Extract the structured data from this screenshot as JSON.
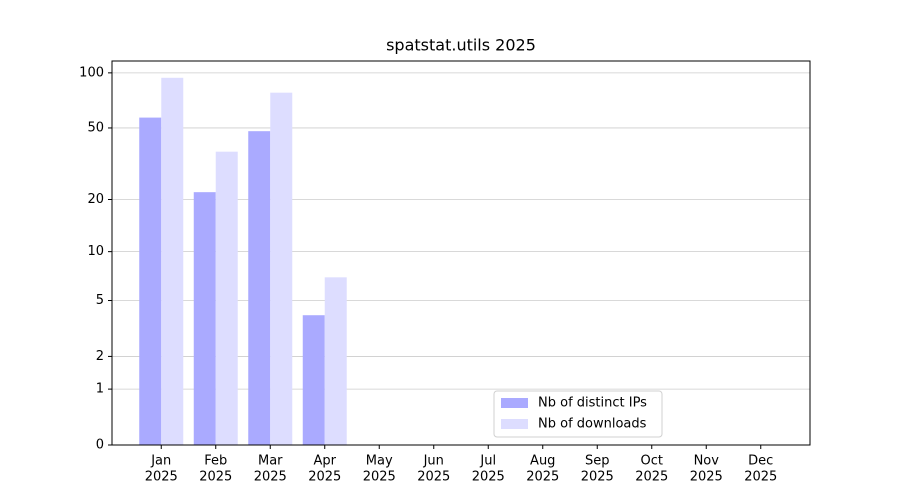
{
  "chart_data": {
    "type": "bar",
    "title": "spatstat.utils 2025",
    "categories": [
      [
        "Jan",
        "2025"
      ],
      [
        "Feb",
        "2025"
      ],
      [
        "Mar",
        "2025"
      ],
      [
        "Apr",
        "2025"
      ],
      [
        "May",
        "2025"
      ],
      [
        "Jun",
        "2025"
      ],
      [
        "Jul",
        "2025"
      ],
      [
        "Aug",
        "2025"
      ],
      [
        "Sep",
        "2025"
      ],
      [
        "Oct",
        "2025"
      ],
      [
        "Nov",
        "2025"
      ],
      [
        "Dec",
        "2025"
      ]
    ],
    "series": [
      {
        "name": "Nb of distinct IPs",
        "color": "#aaaaff",
        "values": [
          57,
          22,
          48,
          4,
          null,
          null,
          null,
          null,
          null,
          null,
          null,
          null
        ]
      },
      {
        "name": "Nb of downloads",
        "color": "#ddddff",
        "values": [
          94,
          37,
          78,
          7,
          null,
          null,
          null,
          null,
          null,
          null,
          null,
          null
        ]
      }
    ],
    "yscale": "log1p",
    "ylim": [
      0,
      116
    ],
    "yticks": [
      0,
      1,
      2,
      5,
      10,
      20,
      50,
      100
    ],
    "grid": true,
    "legend": "lower center"
  }
}
